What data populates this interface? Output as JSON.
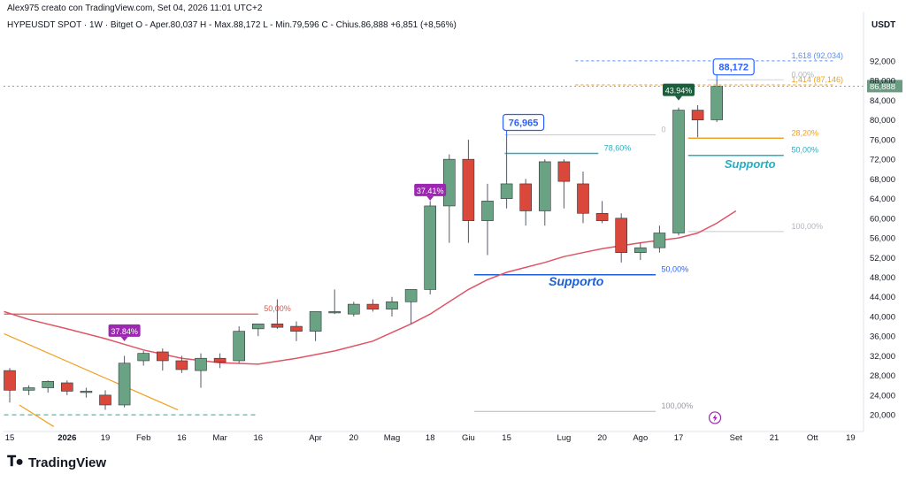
{
  "header": {
    "credit": "Alex975 creato con TradingView.com, Set 04, 2026 11:01 UTC+2",
    "symbol_line": "HYPEUSDT SPOT · 1W · Bitget   O - Aper.80,037   H - Max.88,172   L - Min.79,596   C - Chius.86,888   +6,851 (+8,56%)",
    "currency": "USDT"
  },
  "brand": {
    "name": "TradingView",
    "logo_icon": "tradingview-logo-icon"
  },
  "colors": {
    "up": "#6aa383",
    "down": "#d9483b",
    "ma": "#e05466",
    "supp_blue": "#1c5fd6",
    "supp_cyan": "#21b0c4"
  },
  "chart_data": {
    "type": "candlestick",
    "y_axis": {
      "ylim": [
        17500,
        96500
      ],
      "ticks": [
        20000,
        24000,
        28000,
        32000,
        36000,
        40000,
        44000,
        48000,
        52000,
        56000,
        60000,
        64000,
        68000,
        72000,
        76000,
        80000,
        84000,
        88000,
        92000
      ],
      "tick_labels": [
        "20,000",
        "24,000",
        "28,000",
        "32,000",
        "36,000",
        "40,000",
        "44,000",
        "48,000",
        "52,000",
        "56,000",
        "60,000",
        "64,000",
        "68,000",
        "72,000",
        "76,000",
        "80,000",
        "84,000",
        "88,000",
        "92,000"
      ],
      "last_price_label": "86,888"
    },
    "x_axis": {
      "labels": [
        "15",
        "2026",
        "19",
        "Feb",
        "16",
        "Mar",
        "16",
        "Apr",
        "20",
        "Mag",
        "18",
        "Giu",
        "15",
        "Lug",
        "20",
        "Ago",
        "17",
        "Set",
        "21",
        "Ott",
        "19"
      ],
      "label_index": [
        0,
        3,
        5,
        7,
        9,
        11,
        13,
        16,
        18,
        20,
        22,
        24,
        26,
        29,
        31,
        33,
        35,
        38,
        40,
        42,
        44
      ]
    },
    "candles": [
      {
        "o": 29000,
        "h": 29500,
        "l": 22500,
        "c": 25000
      },
      {
        "o": 25000,
        "h": 26000,
        "l": 24000,
        "c": 25500
      },
      {
        "o": 25500,
        "h": 27000,
        "l": 24500,
        "c": 26800
      },
      {
        "o": 26500,
        "h": 27000,
        "l": 24000,
        "c": 24800
      },
      {
        "o": 24800,
        "h": 25500,
        "l": 23500,
        "c": 24800
      },
      {
        "o": 24000,
        "h": 25000,
        "l": 21000,
        "c": 22000
      },
      {
        "o": 22000,
        "h": 32000,
        "l": 21500,
        "c": 30500
      },
      {
        "o": 31000,
        "h": 33000,
        "l": 30000,
        "c": 32500
      },
      {
        "o": 32800,
        "h": 33500,
        "l": 29000,
        "c": 31000
      },
      {
        "o": 31000,
        "h": 32000,
        "l": 28500,
        "c": 29200
      },
      {
        "o": 29000,
        "h": 32500,
        "l": 25500,
        "c": 31500
      },
      {
        "o": 31500,
        "h": 32500,
        "l": 29500,
        "c": 30700
      },
      {
        "o": 31000,
        "h": 38000,
        "l": 30500,
        "c": 37000
      },
      {
        "o": 37500,
        "h": 38500,
        "l": 36000,
        "c": 38500
      },
      {
        "o": 38500,
        "h": 43500,
        "l": 37500,
        "c": 37800
      },
      {
        "o": 38000,
        "h": 39000,
        "l": 35000,
        "c": 37000
      },
      {
        "o": 37000,
        "h": 41000,
        "l": 35000,
        "c": 41000
      },
      {
        "o": 41000,
        "h": 45500,
        "l": 40500,
        "c": 41000
      },
      {
        "o": 40500,
        "h": 43000,
        "l": 40000,
        "c": 42500
      },
      {
        "o": 42500,
        "h": 43500,
        "l": 41000,
        "c": 41500
      },
      {
        "o": 41500,
        "h": 44000,
        "l": 40000,
        "c": 43000
      },
      {
        "o": 43000,
        "h": 45500,
        "l": 38500,
        "c": 45500
      },
      {
        "o": 45500,
        "h": 63500,
        "l": 44500,
        "c": 62500
      },
      {
        "o": 62500,
        "h": 73000,
        "l": 55000,
        "c": 72000
      },
      {
        "o": 72000,
        "h": 76000,
        "l": 55000,
        "c": 59500
      },
      {
        "o": 59500,
        "h": 67000,
        "l": 52500,
        "c": 63500
      },
      {
        "o": 64000,
        "h": 76965,
        "l": 62000,
        "c": 67000
      },
      {
        "o": 67000,
        "h": 68000,
        "l": 58500,
        "c": 61500
      },
      {
        "o": 61500,
        "h": 72000,
        "l": 58500,
        "c": 71500
      },
      {
        "o": 71500,
        "h": 72000,
        "l": 62000,
        "c": 67500
      },
      {
        "o": 67000,
        "h": 69500,
        "l": 59000,
        "c": 61000
      },
      {
        "o": 61000,
        "h": 63500,
        "l": 59000,
        "c": 59500
      },
      {
        "o": 60000,
        "h": 61000,
        "l": 51000,
        "c": 53000
      },
      {
        "o": 53000,
        "h": 55000,
        "l": 51500,
        "c": 54000
      },
      {
        "o": 54000,
        "h": 58500,
        "l": 53000,
        "c": 57000
      },
      {
        "o": 57000,
        "h": 82500,
        "l": 56500,
        "c": 82000
      },
      {
        "o": 82000,
        "h": 83000,
        "l": 76500,
        "c": 80000
      },
      {
        "o": 80037,
        "h": 88172,
        "l": 79596,
        "c": 86888
      }
    ],
    "moving_average": {
      "x_index": [
        -0.3,
        1,
        3,
        5,
        7,
        9,
        11,
        13,
        15,
        17,
        19,
        21,
        22,
        23,
        24,
        25,
        26,
        27,
        28,
        29,
        30,
        31,
        32,
        33,
        34,
        35,
        36,
        37,
        38
      ],
      "values": [
        41000,
        39400,
        37500,
        35500,
        33200,
        31500,
        30600,
        30300,
        31500,
        33000,
        35000,
        38500,
        40500,
        43000,
        45500,
        47500,
        49000,
        50000,
        51000,
        52200,
        53000,
        53800,
        54400,
        55000,
        55500,
        56000,
        57000,
        59000,
        61500
      ]
    },
    "levels": [
      {
        "y": 40500,
        "x0": -0.3,
        "x1": 13,
        "color": "#d9483b",
        "width": 1.2,
        "dash": "",
        "label": "50,00%",
        "label_x": 13.3,
        "label_color": "#e0574c"
      },
      {
        "y": 20000,
        "x0": -0.3,
        "x1": 13,
        "color": "#26a69a",
        "width": 1,
        "dash": "5,4",
        "label": "",
        "label_x": 0,
        "label_color": ""
      },
      {
        "y": 48500,
        "x0": 24.3,
        "x1": 33.8,
        "color": "#1c5fd6",
        "width": 1.5,
        "dash": "",
        "label": "50,00%",
        "label_x": 34.1,
        "label_color": "#2962ff"
      },
      {
        "y": 20700,
        "x0": 24.3,
        "x1": 33.8,
        "color": "#b5b8c0",
        "width": 1,
        "dash": "",
        "label": "100,00%",
        "label_x": 34.1,
        "label_color": "#9598a1"
      },
      {
        "y": 73200,
        "x0": 25.9,
        "x1": 30.8,
        "color": "#21b0c4",
        "width": 1.5,
        "dash": "",
        "label": "78,60%",
        "label_x": 31.1,
        "label_color": "#21b0c4"
      },
      {
        "y": 76965,
        "x0": 25.9,
        "x1": 33.8,
        "color": "#c8cad0",
        "width": 1,
        "dash": "",
        "label": "0",
        "label_x": 34.1,
        "label_color": "#b2b5be"
      },
      {
        "y": 76300,
        "x0": 35.5,
        "x1": 40.5,
        "color": "#f0a020",
        "width": 1.5,
        "dash": "",
        "label": "28,20%",
        "label_x": 40.9,
        "label_color": "#f0a020"
      },
      {
        "y": 72800,
        "x0": 35.5,
        "x1": 40.5,
        "color": "#21b0c4",
        "width": 1.5,
        "dash": "",
        "label": "50,00%",
        "label_x": 40.9,
        "label_color": "#21b0c4"
      },
      {
        "y": 57300,
        "x0": 35.5,
        "x1": 40.5,
        "color": "#c8cad0",
        "width": 1,
        "dash": "",
        "label": "100,00%",
        "label_x": 40.9,
        "label_color": "#b2b5be"
      },
      {
        "y": 92034,
        "x0": 29.6,
        "x1": 43.1,
        "color": "#5b8ff0",
        "width": 1,
        "dash": "3,3",
        "label": "1,618 (92,034)",
        "label_x": 40.9,
        "label_color": "#5b8ff0"
      },
      {
        "y": 87146,
        "x0": 29.6,
        "x1": 43.1,
        "color": "#f0a020",
        "width": 1,
        "dash": "3,3",
        "label": "1,414 (87,146)",
        "label_x": 40.9,
        "label_color": "#f0a020"
      },
      {
        "y": 88172,
        "x0": 36.5,
        "x1": 40.5,
        "color": "#d1d4dc",
        "width": 1,
        "dash": "",
        "label": "0,00%",
        "label_x": 40.9,
        "label_color": "#b2b5be"
      }
    ],
    "trend_lines": [
      {
        "x0": -0.3,
        "y0": 36500,
        "x1": 8.8,
        "y1": 21000,
        "color": "#f0a020"
      },
      {
        "x0": 0.5,
        "y0": 22000,
        "x1": 2.3,
        "y1": 17600,
        "color": "#f0a020"
      }
    ],
    "pct_labels": [
      {
        "text": "37.84%",
        "candle": 6,
        "price": 36600,
        "color": "#9c27b0"
      },
      {
        "text": "37.41%",
        "candle": 22,
        "price": 65200,
        "color": "#9c27b0"
      },
      {
        "text": "43.94%",
        "candle": 35,
        "price": 85600,
        "color": "#1b5e3b"
      }
    ],
    "price_callouts": [
      {
        "text": "76,965",
        "candle": 26,
        "price": 79500
      },
      {
        "text": "88,172",
        "candle": 37,
        "price": 90800
      }
    ],
    "support_labels": [
      {
        "text": "Supporto",
        "x": 28.2,
        "price": 46300,
        "color": "#1c5fd6",
        "size": 14
      },
      {
        "text": "Supporto",
        "x": 37.4,
        "price": 70200,
        "color": "#21b0c4",
        "size": 13
      }
    ],
    "event_icon": "lightning-icon"
  }
}
